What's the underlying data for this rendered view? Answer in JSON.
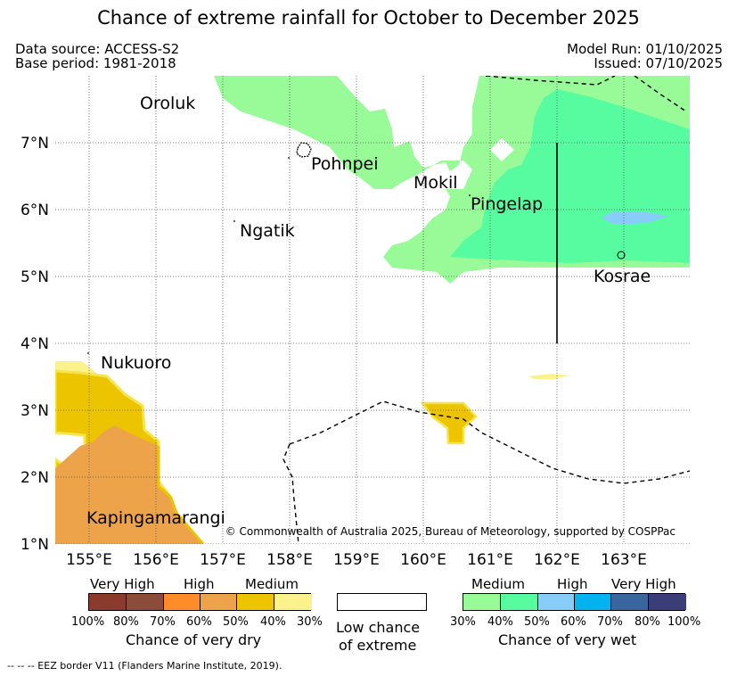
{
  "title": "Chance of extreme rainfall for October to December 2025",
  "meta": {
    "data_source": "Data source: ACCESS-S2",
    "base_period": "Base period: 1981-2018",
    "model_run": "Model Run: 01/10/2025",
    "issued": "Issued: 07/10/2025"
  },
  "axes": {
    "x_ticks": [
      "155°E",
      "156°E",
      "157°E",
      "158°E",
      "159°E",
      "160°E",
      "161°E",
      "162°E",
      "163°E"
    ],
    "y_ticks": [
      "7°N",
      "6°N",
      "5°N",
      "4°N",
      "3°N",
      "2°N",
      "1°N"
    ]
  },
  "places": {
    "oroluk": "Oroluk",
    "pohnpei": "Pohnpei",
    "mokil": "Mokil",
    "pingelap": "Pingelap",
    "ngatik": "Ngatik",
    "kosrae": "Kosrae",
    "nukuoro": "Nukuoro",
    "kapingamarangi": "Kapingamarangi"
  },
  "copyright": "© Commonwealth of Australia 2025, Bureau of Meteorology, supported by COSPPac",
  "legend": {
    "dry": {
      "headers": [
        "Very High",
        "High",
        "Medium"
      ],
      "percents": [
        "100%",
        "80%",
        "70%",
        "60%",
        "50%",
        "40%",
        "30%"
      ],
      "caption": "Chance of very dry",
      "colors": [
        "#8b3a2e",
        "#8b4d3a",
        "#ff8c28",
        "#eda34a",
        "#ecc500",
        "#fbf28d"
      ]
    },
    "low": {
      "caption_line1": "Low chance",
      "caption_line2": "of extreme"
    },
    "wet": {
      "headers": [
        "Medium",
        "High",
        "Very High"
      ],
      "percents": [
        "30%",
        "40%",
        "50%",
        "60%",
        "70%",
        "80%",
        "100%"
      ],
      "caption": "Chance of very wet",
      "colors": [
        "#98fb98",
        "#57fba0",
        "#88ccfa",
        "#03b3ef",
        "#3a66a0",
        "#3b3d78"
      ]
    }
  },
  "eez_note": "--  --  -- EEZ border V11 (Flanders Marine Institute, 2019)."
}
